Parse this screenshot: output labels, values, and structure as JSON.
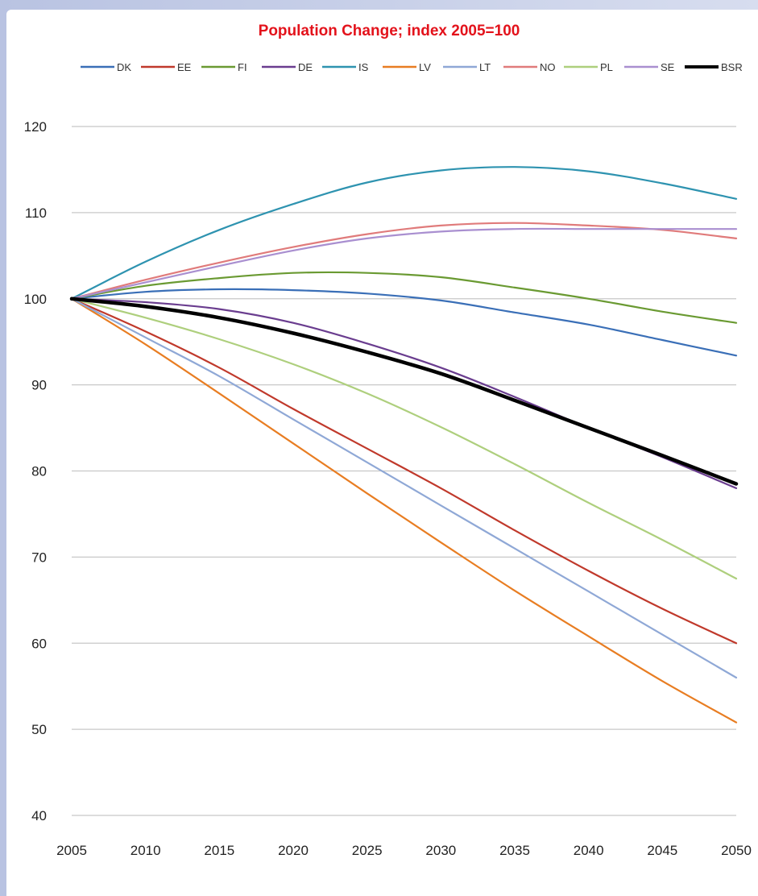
{
  "chart_data": {
    "type": "line",
    "title": "Population Change; index 2005=100",
    "xlabel": "",
    "ylabel": "",
    "x": [
      2005,
      2010,
      2015,
      2020,
      2025,
      2030,
      2035,
      2040,
      2045,
      2050
    ],
    "xlim": [
      2005,
      2050
    ],
    "ylim": [
      40,
      120
    ],
    "yticks": [
      40,
      50,
      60,
      70,
      80,
      90,
      100,
      110,
      120
    ],
    "xtick_labels": [
      "2005",
      "2010",
      "2015",
      "2020",
      "2025",
      "2030",
      "2035",
      "2040",
      "2045",
      "2050"
    ],
    "ytick_labels": [
      "40",
      "50",
      "60",
      "70",
      "80",
      "90",
      "100",
      "110",
      "120"
    ],
    "grid": true,
    "legend_position": "top",
    "series": [
      {
        "name": "DK",
        "color": "#3a6fb7",
        "width": 2.2,
        "values": [
          100,
          100.8,
          101.1,
          101.0,
          100.6,
          99.8,
          98.4,
          97.0,
          95.2,
          93.4
        ]
      },
      {
        "name": "EE",
        "color": "#c0392b",
        "width": 2.2,
        "values": [
          100,
          96.2,
          92.0,
          87.2,
          82.6,
          78.0,
          73.1,
          68.4,
          64.0,
          60.0
        ]
      },
      {
        "name": "FI",
        "color": "#6a9a32",
        "width": 2.2,
        "values": [
          100,
          101.5,
          102.4,
          103.0,
          103.0,
          102.5,
          101.3,
          100.0,
          98.5,
          97.2
        ]
      },
      {
        "name": "DE",
        "color": "#6a3d8f",
        "width": 2.2,
        "values": [
          100,
          99.6,
          98.8,
          97.2,
          94.8,
          92.0,
          88.6,
          85.0,
          81.6,
          78.0
        ]
      },
      {
        "name": "IS",
        "color": "#2e93b0",
        "width": 2.2,
        "values": [
          100,
          104.3,
          108.0,
          111.0,
          113.5,
          114.9,
          115.3,
          114.8,
          113.4,
          111.6
        ]
      },
      {
        "name": "LV",
        "color": "#e87d22",
        "width": 2.2,
        "values": [
          100,
          94.7,
          89.0,
          83.2,
          77.4,
          71.7,
          66.1,
          60.8,
          55.6,
          50.8
        ]
      },
      {
        "name": "LT",
        "color": "#8fa8d6",
        "width": 2.2,
        "values": [
          100,
          95.5,
          91.0,
          86.0,
          81.0,
          76.0,
          71.0,
          66.0,
          61.0,
          56.0
        ]
      },
      {
        "name": "NO",
        "color": "#e07b7b",
        "width": 2.2,
        "values": [
          100,
          102.2,
          104.2,
          106.0,
          107.5,
          108.5,
          108.8,
          108.5,
          108.0,
          107.0
        ]
      },
      {
        "name": "PL",
        "color": "#aecf7d",
        "width": 2.2,
        "values": [
          100,
          97.8,
          95.3,
          92.4,
          89.0,
          85.1,
          80.8,
          76.3,
          72.0,
          67.5
        ]
      },
      {
        "name": "SE",
        "color": "#a98fd0",
        "width": 2.2,
        "values": [
          100,
          101.9,
          103.8,
          105.6,
          107.0,
          107.8,
          108.1,
          108.1,
          108.1,
          108.1
        ]
      },
      {
        "name": "BSR",
        "color": "#000000",
        "width": 4.5,
        "values": [
          100,
          99.1,
          97.8,
          96.0,
          93.8,
          91.3,
          88.2,
          85.0,
          81.8,
          78.5
        ]
      }
    ]
  }
}
